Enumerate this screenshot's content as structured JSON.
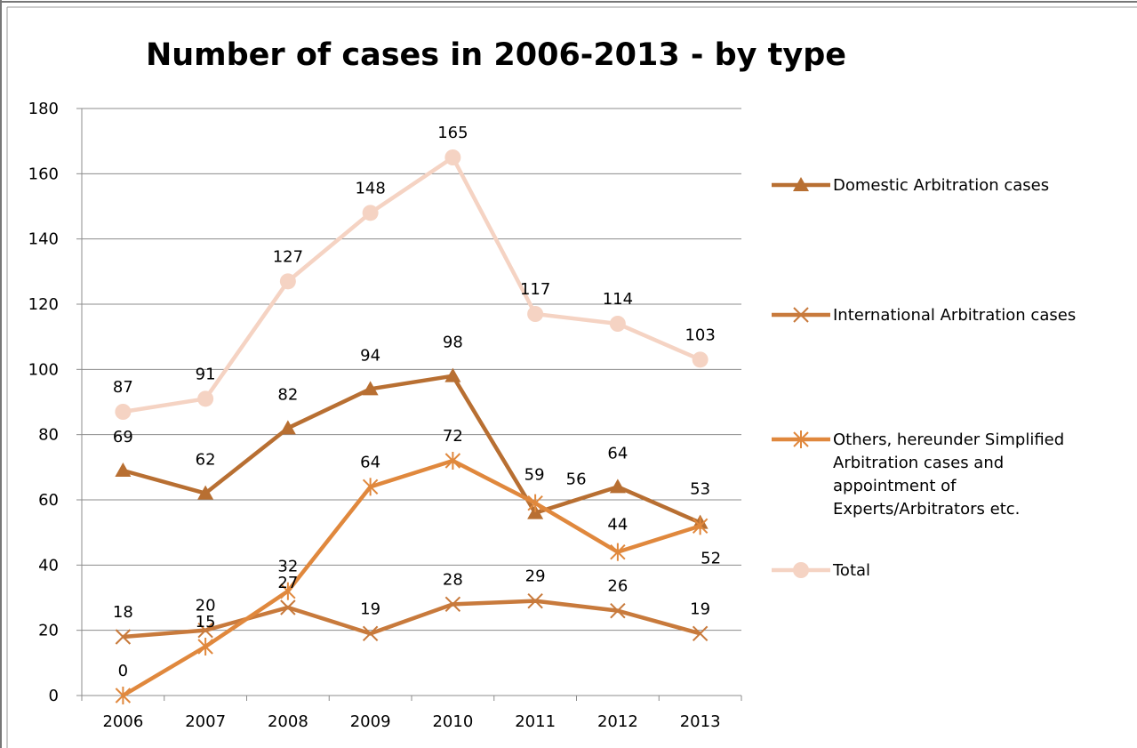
{
  "chart_data": {
    "type": "line",
    "title": "Number of cases in 2006-2013 - by type",
    "xlabel": "",
    "ylabel": "",
    "categories": [
      "2006",
      "2007",
      "2008",
      "2009",
      "2010",
      "2011",
      "2012",
      "2013"
    ],
    "ylim": [
      0,
      180
    ],
    "yticks": [
      0,
      20,
      40,
      60,
      80,
      100,
      120,
      140,
      160,
      180
    ],
    "grid": "horizontal",
    "legend_position": "right",
    "series": [
      {
        "name": "Domestic Arbitration cases",
        "values": [
          69,
          62,
          82,
          94,
          98,
          56,
          64,
          53
        ],
        "color": "#B86F32",
        "marker": "triangle"
      },
      {
        "name": "International Arbitration cases",
        "values": [
          18,
          20,
          27,
          19,
          28,
          29,
          26,
          19
        ],
        "color": "#C87A3C",
        "marker": "x"
      },
      {
        "name": "Others, hereunder Simplified Arbitration cases and appointment of Experts/Arbitrators etc.",
        "legend_lines": [
          "Others, hereunder Simplified",
          "Arbitration cases and",
          "appointment of",
          "Experts/Arbitrators etc."
        ],
        "values": [
          0,
          15,
          32,
          64,
          72,
          59,
          44,
          52
        ],
        "color": "#E0883D",
        "marker": "star"
      },
      {
        "name": "Total",
        "values": [
          87,
          91,
          127,
          148,
          165,
          117,
          114,
          103
        ],
        "color": "#F5D3C3",
        "marker": "circle"
      }
    ]
  }
}
